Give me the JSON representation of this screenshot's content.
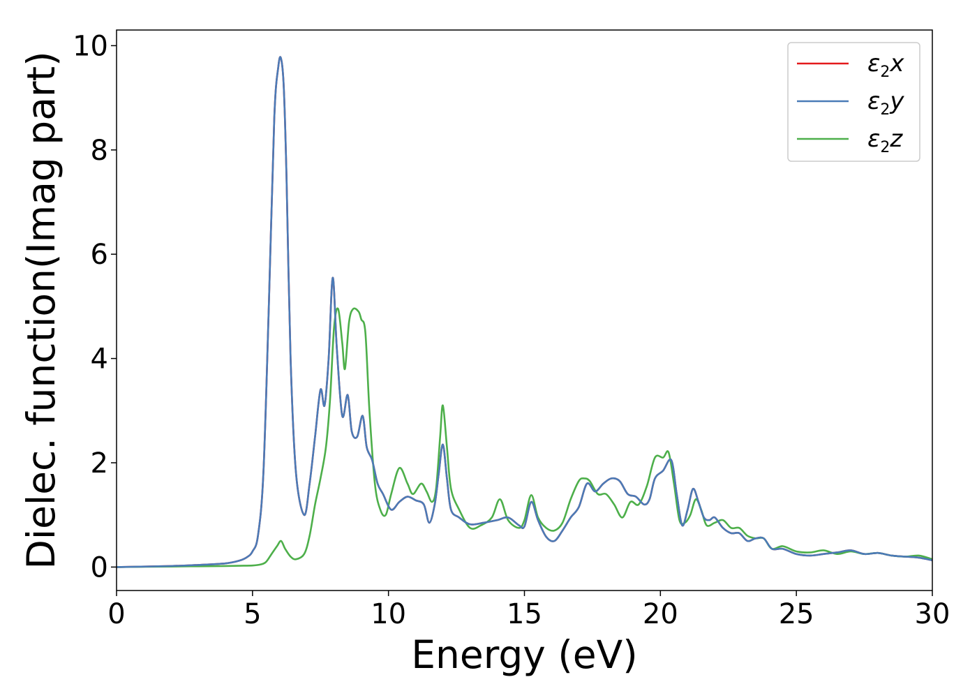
{
  "chart_data": {
    "type": "line",
    "xlabel": "Energy (eV)",
    "ylabel": "Dielec. function(Imag part)",
    "xlim": [
      0,
      30
    ],
    "ylim": [
      -0.45,
      10.3
    ],
    "xticks": [
      0,
      5,
      10,
      15,
      20,
      25,
      30
    ],
    "yticks": [
      0,
      2,
      4,
      6,
      8,
      10
    ],
    "grid": false,
    "legend_position": "top-right",
    "series": [
      {
        "name": "ε2x",
        "legend_base": "ε",
        "legend_sub": "2",
        "legend_tail": "x",
        "color": "#e41a1c",
        "x": [
          0,
          2,
          3,
          4,
          4.5,
          4.8,
          5.0,
          5.2,
          5.4,
          5.6,
          5.8,
          5.95,
          6.05,
          6.15,
          6.25,
          6.4,
          6.6,
          6.9,
          7.1,
          7.3,
          7.5,
          7.65,
          7.8,
          7.95,
          8.1,
          8.3,
          8.5,
          8.65,
          8.85,
          9.05,
          9.2,
          9.4,
          9.6,
          9.8,
          10.1,
          10.4,
          10.7,
          11.0,
          11.3,
          11.5,
          11.7,
          11.85,
          12.0,
          12.15,
          12.3,
          12.6,
          13.0,
          13.5,
          14.0,
          14.4,
          14.8,
          15.0,
          15.25,
          15.5,
          15.8,
          16.1,
          16.4,
          16.7,
          17.0,
          17.3,
          17.6,
          17.9,
          18.2,
          18.5,
          18.8,
          19.1,
          19.4,
          19.6,
          19.8,
          20.1,
          20.4,
          20.6,
          20.8,
          21.0,
          21.2,
          21.4,
          21.6,
          21.8,
          22.0,
          22.3,
          22.6,
          22.9,
          23.2,
          23.5,
          23.8,
          24.1,
          24.5,
          25.0,
          25.5,
          26.0,
          26.5,
          27.0,
          27.5,
          28.0,
          28.5,
          29.0,
          29.5,
          30.0
        ],
        "y": [
          0,
          0.02,
          0.04,
          0.07,
          0.12,
          0.19,
          0.3,
          0.6,
          1.8,
          5.0,
          8.6,
          9.6,
          9.75,
          9.2,
          7.5,
          4.0,
          1.8,
          1.0,
          1.6,
          2.5,
          3.4,
          3.1,
          4.0,
          5.55,
          4.2,
          2.9,
          3.3,
          2.6,
          2.5,
          2.9,
          2.3,
          2.05,
          1.6,
          1.4,
          1.1,
          1.25,
          1.35,
          1.28,
          1.2,
          0.85,
          1.2,
          1.8,
          2.35,
          1.7,
          1.1,
          0.95,
          0.82,
          0.85,
          0.9,
          0.95,
          0.8,
          0.78,
          1.25,
          0.9,
          0.58,
          0.5,
          0.7,
          0.95,
          1.15,
          1.6,
          1.45,
          1.6,
          1.7,
          1.65,
          1.4,
          1.35,
          1.2,
          1.3,
          1.7,
          1.85,
          2.05,
          1.4,
          0.8,
          1.1,
          1.5,
          1.25,
          0.95,
          0.9,
          0.95,
          0.75,
          0.65,
          0.65,
          0.5,
          0.55,
          0.55,
          0.35,
          0.35,
          0.25,
          0.22,
          0.25,
          0.28,
          0.32,
          0.25,
          0.27,
          0.22,
          0.2,
          0.18,
          0.13
        ]
      },
      {
        "name": "ε2y",
        "legend_base": "ε",
        "legend_sub": "2",
        "legend_tail": "y",
        "color": "#4a7bb7",
        "x": [
          0,
          2,
          3,
          4,
          4.5,
          4.8,
          5.0,
          5.2,
          5.4,
          5.6,
          5.8,
          5.95,
          6.05,
          6.15,
          6.25,
          6.4,
          6.6,
          6.9,
          7.1,
          7.3,
          7.5,
          7.65,
          7.8,
          7.95,
          8.1,
          8.3,
          8.5,
          8.65,
          8.85,
          9.05,
          9.2,
          9.4,
          9.6,
          9.8,
          10.1,
          10.4,
          10.7,
          11.0,
          11.3,
          11.5,
          11.7,
          11.85,
          12.0,
          12.15,
          12.3,
          12.6,
          13.0,
          13.5,
          14.0,
          14.4,
          14.8,
          15.0,
          15.25,
          15.5,
          15.8,
          16.1,
          16.4,
          16.7,
          17.0,
          17.3,
          17.6,
          17.9,
          18.2,
          18.5,
          18.8,
          19.1,
          19.4,
          19.6,
          19.8,
          20.1,
          20.4,
          20.6,
          20.8,
          21.0,
          21.2,
          21.4,
          21.6,
          21.8,
          22.0,
          22.3,
          22.6,
          22.9,
          23.2,
          23.5,
          23.8,
          24.1,
          24.5,
          25.0,
          25.5,
          26.0,
          26.5,
          27.0,
          27.5,
          28.0,
          28.5,
          29.0,
          29.5,
          30.0
        ],
        "y": [
          0,
          0.02,
          0.04,
          0.07,
          0.12,
          0.19,
          0.3,
          0.6,
          1.8,
          5.0,
          8.6,
          9.6,
          9.75,
          9.2,
          7.5,
          4.0,
          1.8,
          1.0,
          1.6,
          2.5,
          3.4,
          3.1,
          4.0,
          5.55,
          4.2,
          2.9,
          3.3,
          2.6,
          2.5,
          2.9,
          2.3,
          2.05,
          1.6,
          1.4,
          1.1,
          1.25,
          1.35,
          1.28,
          1.2,
          0.85,
          1.2,
          1.8,
          2.35,
          1.7,
          1.1,
          0.95,
          0.82,
          0.85,
          0.9,
          0.95,
          0.8,
          0.78,
          1.25,
          0.9,
          0.58,
          0.5,
          0.7,
          0.95,
          1.15,
          1.6,
          1.45,
          1.6,
          1.7,
          1.65,
          1.4,
          1.35,
          1.2,
          1.3,
          1.7,
          1.85,
          2.05,
          1.4,
          0.8,
          1.1,
          1.5,
          1.25,
          0.95,
          0.9,
          0.95,
          0.75,
          0.65,
          0.65,
          0.5,
          0.55,
          0.55,
          0.35,
          0.35,
          0.25,
          0.22,
          0.25,
          0.28,
          0.32,
          0.25,
          0.27,
          0.22,
          0.2,
          0.18,
          0.13
        ]
      },
      {
        "name": "ε2z",
        "legend_base": "ε",
        "legend_sub": "2",
        "legend_tail": "z",
        "color": "#4daf4a",
        "x": [
          0,
          2,
          3,
          4,
          4.5,
          5.0,
          5.3,
          5.5,
          5.7,
          5.9,
          6.05,
          6.2,
          6.4,
          6.6,
          6.9,
          7.1,
          7.3,
          7.5,
          7.7,
          7.85,
          8.0,
          8.15,
          8.3,
          8.4,
          8.55,
          8.7,
          8.9,
          9.0,
          9.15,
          9.3,
          9.5,
          9.7,
          9.9,
          10.1,
          10.4,
          10.7,
          10.9,
          11.2,
          11.4,
          11.6,
          11.75,
          11.9,
          12.0,
          12.15,
          12.3,
          12.6,
          13.0,
          13.4,
          13.8,
          14.1,
          14.4,
          14.8,
          15.0,
          15.25,
          15.5,
          15.8,
          16.1,
          16.4,
          16.7,
          17.0,
          17.2,
          17.4,
          17.7,
          18.0,
          18.3,
          18.6,
          18.9,
          19.2,
          19.5,
          19.8,
          20.1,
          20.3,
          20.5,
          20.7,
          20.9,
          21.1,
          21.3,
          21.5,
          21.7,
          22.0,
          22.3,
          22.6,
          22.9,
          23.2,
          23.5,
          23.8,
          24.1,
          24.5,
          25.0,
          25.5,
          26.0,
          26.5,
          27.0,
          27.5,
          28.0,
          28.5,
          29.0,
          29.5,
          30.0
        ],
        "y": [
          0,
          0.01,
          0.015,
          0.02,
          0.025,
          0.03,
          0.05,
          0.1,
          0.25,
          0.4,
          0.5,
          0.35,
          0.2,
          0.15,
          0.25,
          0.6,
          1.2,
          1.7,
          2.3,
          3.2,
          4.6,
          4.95,
          4.3,
          3.8,
          4.7,
          4.95,
          4.9,
          4.75,
          4.5,
          3.0,
          1.6,
          1.1,
          1.0,
          1.4,
          1.9,
          1.6,
          1.4,
          1.6,
          1.45,
          1.25,
          1.5,
          2.5,
          3.1,
          2.3,
          1.5,
          1.1,
          0.75,
          0.8,
          0.95,
          1.3,
          0.9,
          0.75,
          0.9,
          1.38,
          0.95,
          0.75,
          0.7,
          0.85,
          1.3,
          1.65,
          1.7,
          1.65,
          1.4,
          1.4,
          1.2,
          0.95,
          1.25,
          1.2,
          1.55,
          2.1,
          2.1,
          2.2,
          1.6,
          0.9,
          0.85,
          1.0,
          1.3,
          1.1,
          0.8,
          0.85,
          0.9,
          0.75,
          0.75,
          0.6,
          0.55,
          0.55,
          0.35,
          0.4,
          0.3,
          0.28,
          0.32,
          0.25,
          0.3,
          0.25,
          0.27,
          0.22,
          0.2,
          0.22,
          0.15
        ]
      }
    ]
  }
}
